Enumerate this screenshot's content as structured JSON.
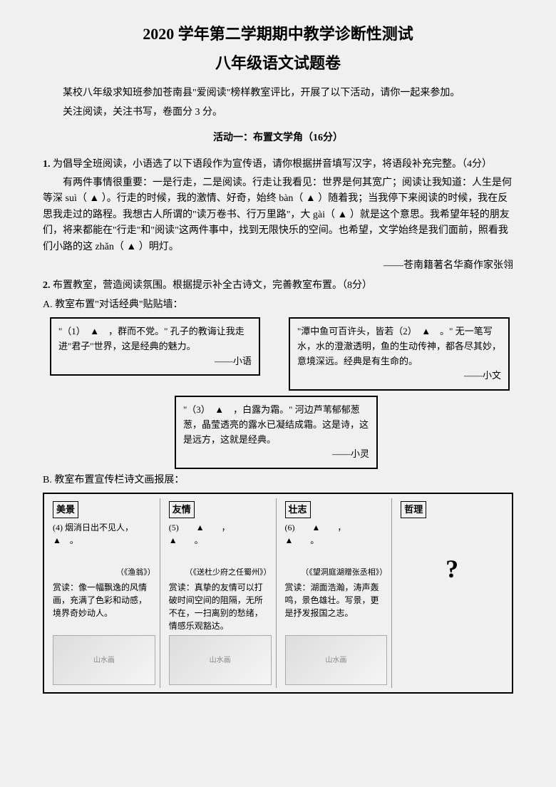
{
  "title1": "2020 学年第二学期期中教学诊断性测试",
  "title2": "八年级语文试题卷",
  "intro1": "某校八年级求知班参加苍南县\"爱阅读\"榜样教室评比，开展了以下活动，请你一起来参加。",
  "intro2": "关注阅读，关注书写，卷面分 3 分。",
  "sectionTitle": "活动一：布置文学角（16分）",
  "q1": {
    "num": "1.",
    "text": "为倡导全班阅读，小语选了以下语段作为宣传语，请你根据拼音填写汉字，将语段补充完整。（4分）",
    "passage": "有两件事情很重要：一是行走，二是阅读。行走让我看见：世界是何其宽广；阅读让我知道：人生是何等深 suì（ ▲ ）。行走的时候，我的激情、好奇，始终 bàn（ ▲ ）随着我；当我停下来阅读的时候，我在反思我走过的路程。我想古人所谓的\"读万卷书、行万里路\"，大 gài（ ▲ ）就是这个意思。我希望年轻的朋友们，将来都能在\"行走\"和\"阅读\"这两件事中，找到无限快乐的空间。也希望，文学始终是我们面前，照看我们小路的这 zhǎn（ ▲ ）明灯。",
    "attr": "——苍南籍著名华裔作家张翎"
  },
  "q2": {
    "num": "2.",
    "text": "布置教室，营造阅读氛围。根据提示补全古诗文，完善教室布置。（8分）",
    "subA": "A. 教室布置\"对话经典\"贴贴墙：",
    "boxLeft": {
      "body": "\"（1）　▲　，群而不党。\" 孔子的教诲让我走进\"君子\"世界，这是经典的魅力。",
      "sig": "——小语"
    },
    "boxRight": {
      "body": "\"潭中鱼可百许头，皆若（2）　▲　。\" 无一笔写水，水的澄澈透明，鱼的生动传神，都各尽其妙，意境深远。经典是有生命的。",
      "sig": "——小文"
    },
    "boxMid": {
      "body": "\"（3）　▲　，白露为霜。\" 河边芦苇郁郁葱葱，晶莹透亮的露水已凝结成霜。这是诗，这是远方，这就是经典。",
      "sig": "——小灵"
    },
    "subB": "B. 教室布置宣传栏诗文画报展：",
    "panels": [
      {
        "tag": "美景",
        "top": "(4) 烟消日出不见人，　▲　。",
        "src": "（《渔翁》）",
        "read": "赏读：像一幅飘逸的风情画，充满了色彩和动感，境界奇妙动人。",
        "img": "山水画"
      },
      {
        "tag": "友情",
        "top": "(5)　　▲　　，　　▲　　。",
        "src": "（《送杜少府之任蜀州》）",
        "read": "赏读：真挚的友情可以打破时间空间的阻隔，无所不在，一扫离别的愁绪，情感乐观豁达。",
        "img": "山水画"
      },
      {
        "tag": "壮志",
        "top": "(6)　　▲　　，　　▲　　。",
        "src": "（《望洞庭湖赠张丞相》）",
        "read": "赏读：湖面浩瀚，涛声轰鸣，景色雄壮。写景，更是抒发报国之志。",
        "img": "山水画"
      },
      {
        "tag": "哲理",
        "qmark": "?"
      }
    ]
  }
}
